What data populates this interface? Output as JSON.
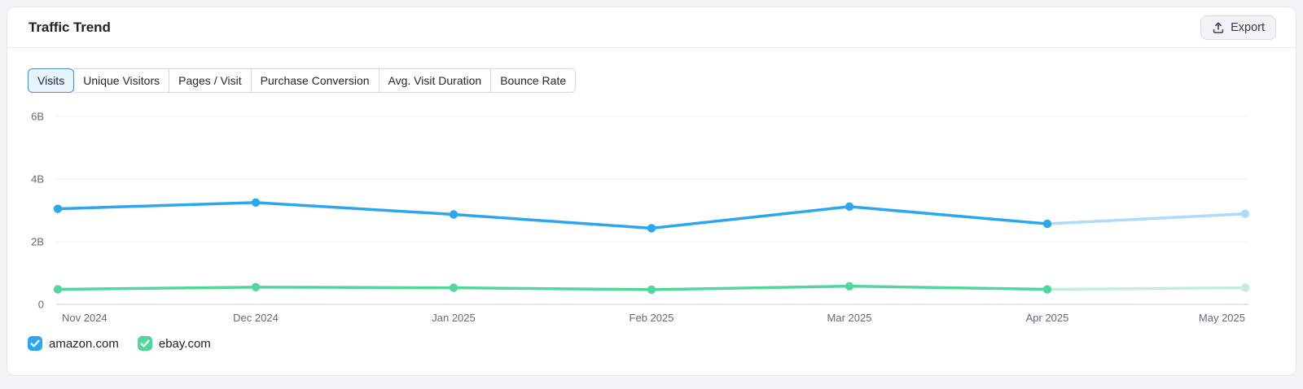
{
  "header": {
    "title": "Traffic Trend",
    "export_label": "Export"
  },
  "tabs": {
    "active_index": 0,
    "items": [
      {
        "label": "Visits"
      },
      {
        "label": "Unique Visitors"
      },
      {
        "label": "Pages / Visit"
      },
      {
        "label": "Purchase Conversion"
      },
      {
        "label": "Avg. Visit Duration"
      },
      {
        "label": "Bounce Rate"
      }
    ]
  },
  "chart_data": {
    "type": "line",
    "title": "Traffic Trend — Visits",
    "x": [
      "Nov 2024",
      "Dec 2024",
      "Jan 2025",
      "Feb 2025",
      "Mar 2025",
      "Apr 2025",
      "May 2025"
    ],
    "value_unit": "billions of visits",
    "ylim_billions": [
      0,
      6
    ],
    "yticks": [
      {
        "value_billions": 0,
        "label": "0"
      },
      {
        "value_billions": 2,
        "label": "2B"
      },
      {
        "value_billions": 4,
        "label": "4B"
      },
      {
        "value_billions": 6,
        "label": "6B"
      }
    ],
    "grid": true,
    "legend_position": "bottom",
    "last_point_is_estimate": true,
    "series": [
      {
        "name": "amazon.com",
        "color": "#2BA7F1",
        "estimate_color": "#AEDBF9",
        "values_billions": [
          3.05,
          3.25,
          2.87,
          2.43,
          3.12,
          2.57,
          2.89
        ]
      },
      {
        "name": "ebay.com",
        "color": "#51D79C",
        "estimate_color": "#C2EEDB",
        "values_billions": [
          0.48,
          0.55,
          0.53,
          0.47,
          0.58,
          0.48,
          0.53
        ]
      }
    ],
    "colors": {
      "gridline": "#EDEEF2",
      "zero_axis": "#C6CBD5",
      "tick_text": "#62697A"
    }
  },
  "legend": {
    "items": [
      {
        "label": "amazon.com",
        "color": "#2BA7F1",
        "checked": true
      },
      {
        "label": "ebay.com",
        "color": "#51D79C",
        "checked": true
      }
    ]
  }
}
